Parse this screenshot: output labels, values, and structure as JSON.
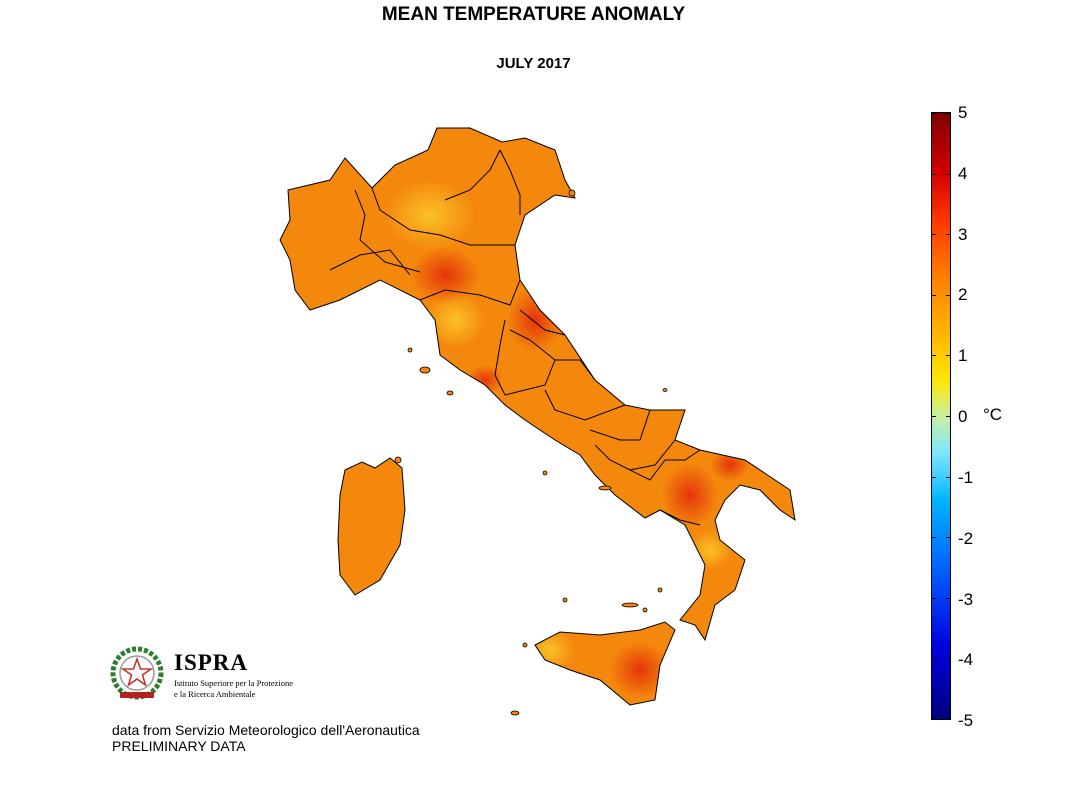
{
  "title": "MEAN TEMPERATURE ANOMALY",
  "subtitle": "JULY 2017",
  "colorbar": {
    "ticks": [
      "5",
      "4",
      "3",
      "2",
      "1",
      "0",
      "-1",
      "-2",
      "-3",
      "-4",
      "-5"
    ],
    "unit": "°C",
    "colors": {
      "max": "#7f0000",
      "mid": "#c8f0a0",
      "min": "#00007f"
    }
  },
  "map": {
    "region": "Italy",
    "fill_color": "#f4880c",
    "hotspot_color": "#e8420a",
    "coolspot_color": "#f9b21a"
  },
  "logo": {
    "name": "ISPRA",
    "line1": "Istituto Superiore per la Protezione",
    "line2": "e la Ricerca Ambientale"
  },
  "source_note": "data from Servizio Meteorologico dell'Aeronautica",
  "status_note": "PRELIMINARY DATA"
}
